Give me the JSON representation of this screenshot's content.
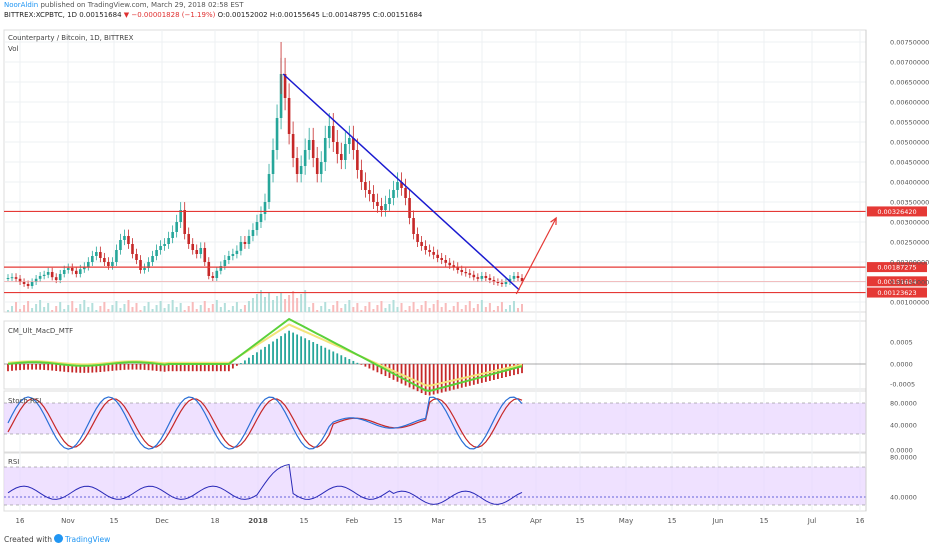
{
  "header": {
    "author": "NoorAldin",
    "published_text": "published on TradingView.com, March 29, 2018 02:58 EST",
    "symbol": "BITTREX:XCPBTC, 1D",
    "last": "0.00151684",
    "change": "−0.00001828 (−1.19%)",
    "ohlc": "O:0.00152002 H:0.00155645 L:0.00148795 C:0.00151684"
  },
  "footer": {
    "created_with": "Created with",
    "brand": "TradingView"
  },
  "chart_data": {
    "type": "candlestick",
    "title": "Counterparty / Bitcoin, 1D, BITTREX",
    "volume_label": "Vol",
    "y_ticks": [
      "0.00750000",
      "0.00700000",
      "0.00650000",
      "0.00600000",
      "0.00550000",
      "0.00500000",
      "0.00450000",
      "0.00400000",
      "0.00350000",
      "0.00300000",
      "0.00250000",
      "0.00200000",
      "0.00150000",
      "0.00100000"
    ],
    "ylim": [
      0.00075,
      0.0078
    ],
    "x_ticks": [
      "16",
      "Nov",
      "15",
      "Dec",
      "18",
      "2018",
      "15",
      "Feb",
      "15",
      "Mar",
      "15",
      "Apr",
      "15",
      "May",
      "15",
      "Jun",
      "15",
      "Jul",
      "16"
    ],
    "price_labels": [
      {
        "value": 0.0032642,
        "text": "0.00326420",
        "color": "#e53935"
      },
      {
        "value": 0.00187275,
        "text": "0.00187275",
        "color": "#e53935"
      },
      {
        "value": 0.00151684,
        "text": "0.00151684",
        "color": "#e53935"
      },
      {
        "value": 0.00123623,
        "text": "0.00123623",
        "color": "#e53935"
      }
    ],
    "horizontal_lines": [
      0.0032642,
      0.00187275,
      0.00123623
    ],
    "trendline": {
      "from": [
        "2018-01-11",
        0.0067
      ],
      "to": [
        "2018-03-29",
        0.0013
      ]
    },
    "arrow": {
      "from": [
        "2018-03-28",
        0.0012
      ],
      "to": [
        "2018-04-10",
        0.0031
      ]
    },
    "macd": {
      "title": "CM_Ult_MacD_MTF",
      "y_ticks": [
        "0.0005",
        "0.0000",
        "-0.0005"
      ]
    },
    "stoch_rsi": {
      "title": "Stoch RSI",
      "y_ticks": [
        "80.0000",
        "40.0000",
        "0.0000"
      ]
    },
    "rsi": {
      "title": "RSI",
      "y_ticks": [
        "80.0000",
        "40.0000"
      ]
    },
    "colors": {
      "up": "#26a69a",
      "down": "#c62828",
      "trendline": "#1a1ad0",
      "level": "#e53935",
      "stoch_k": "#2a6fd6",
      "stoch_d": "#c62828",
      "rsi": "#2a2ab8",
      "band": "#e8d4ff"
    }
  }
}
